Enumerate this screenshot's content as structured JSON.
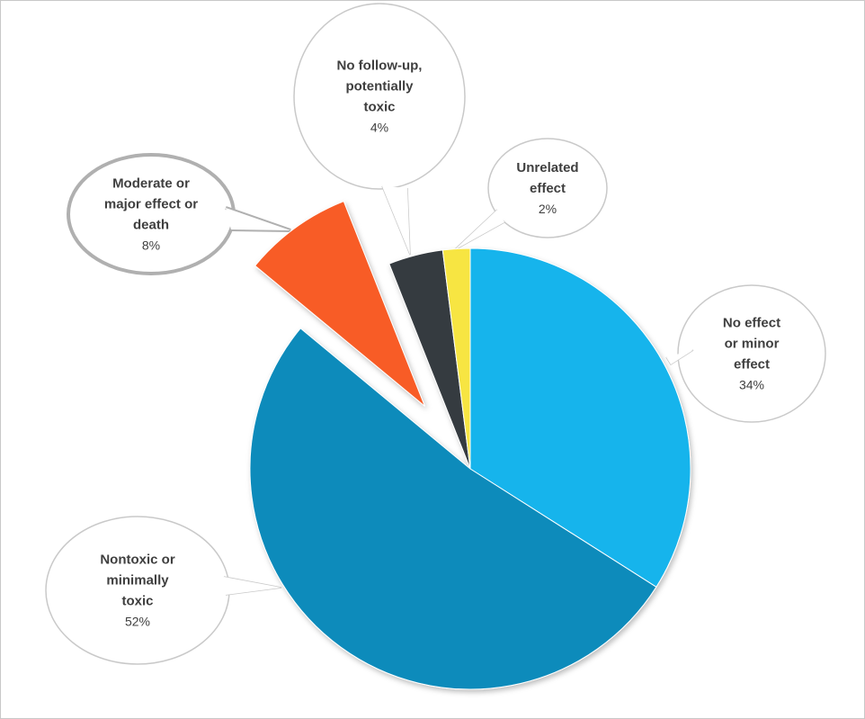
{
  "chart_data": {
    "type": "pie",
    "slices": [
      {
        "label": "No effect or minor effect",
        "label_lines": [
          "No effect",
          "or minor",
          "effect"
        ],
        "value": 34,
        "value_label": "34%",
        "color": "#16b4ec",
        "exploded": false
      },
      {
        "label": "Nontoxic or minimally toxic",
        "label_lines": [
          "Nontoxic or",
          "minimally",
          "toxic"
        ],
        "value": 52,
        "value_label": "52%",
        "color": "#0a8bbb",
        "exploded": false
      },
      {
        "label": "Moderate or major effect or death",
        "label_lines": [
          "Moderate or",
          "major effect or",
          "death"
        ],
        "value": 8,
        "value_label": "8%",
        "color": "#f85b25",
        "exploded": true
      },
      {
        "label": "No follow-up, potentially toxic",
        "label_lines": [
          "No follow-up,",
          "potentially",
          "toxic"
        ],
        "value": 4,
        "value_label": "4%",
        "color": "#363b40",
        "exploded": false
      },
      {
        "label": "Unrelated effect",
        "label_lines": [
          "Unrelated",
          "effect"
        ],
        "value": 2,
        "value_label": "2%",
        "color": "#f7e543",
        "exploded": false
      }
    ],
    "start_angle": "12 o'clock",
    "direction": "clockwise",
    "legend": "none",
    "data_labels": "callouts"
  }
}
